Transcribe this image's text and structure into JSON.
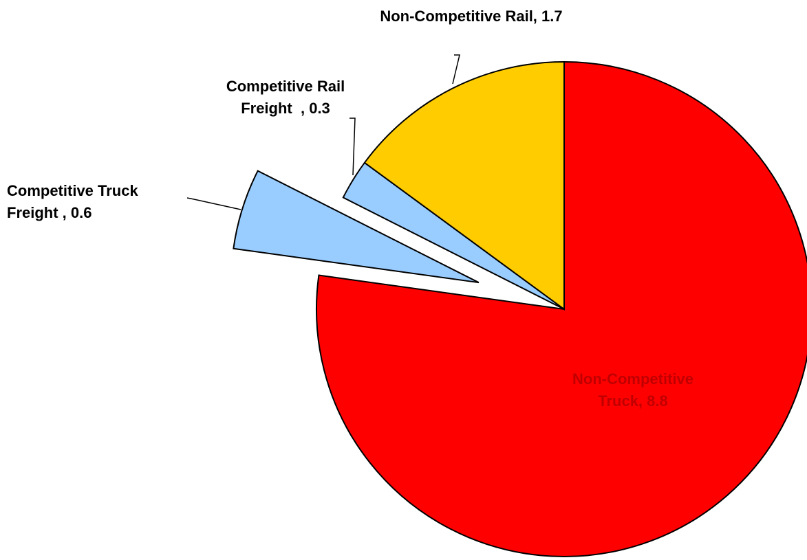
{
  "chart_data": {
    "type": "pie",
    "categories": [
      "Non-Competitive Truck,",
      "Competitive Truck Freight ,",
      "Competitive Rail Freight  ,",
      "Non-Competitive Rail,"
    ],
    "values": [
      8.8,
      0.6,
      0.3,
      1.7
    ],
    "colors": [
      "#ff0000",
      "#99ccff",
      "#99ccff",
      "#ffcc00"
    ],
    "label_colors": [
      "#c00000",
      "#000000",
      "#000000",
      "#000000"
    ],
    "explode": [
      false,
      true,
      false,
      false
    ]
  }
}
